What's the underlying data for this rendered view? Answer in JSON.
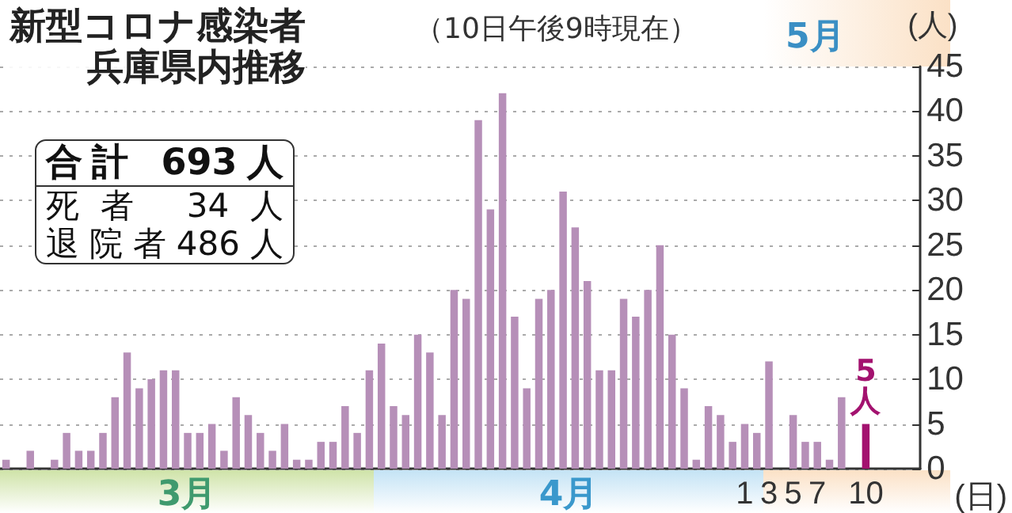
{
  "chart_data": {
    "type": "bar",
    "title": "新型コロナ感染者",
    "subtitle": "兵庫県内推移",
    "ylabel": "(人)",
    "xlabel": "(日)",
    "annotations": [
      "（10日午後9時現在）",
      "合計 693人",
      "死者 34人",
      "退院者486人",
      "3月",
      "4月",
      "5月"
    ],
    "categories": [
      null,
      null,
      null,
      null,
      null,
      null,
      null,
      null,
      null,
      null,
      null,
      null,
      null,
      null,
      null,
      null,
      null,
      null,
      null,
      null,
      null,
      null,
      null,
      null,
      null,
      null,
      null,
      null,
      null,
      null,
      null,
      null,
      null,
      null,
      null,
      null,
      null,
      null,
      null,
      null,
      null,
      null,
      null,
      null,
      null,
      null,
      null,
      null,
      null,
      null,
      null,
      null,
      null,
      null,
      null,
      null,
      null,
      null,
      null,
      null,
      null,
      "1",
      null,
      "3",
      null,
      "5",
      null,
      "7",
      null,
      null,
      null,
      "10"
    ],
    "values": [
      1,
      0,
      2,
      0,
      1,
      4,
      2,
      2,
      4,
      8,
      13,
      9,
      10,
      11,
      11,
      4,
      4,
      5,
      2,
      8,
      6,
      4,
      2,
      5,
      1,
      1,
      3,
      3,
      7,
      4,
      11,
      14,
      7,
      6,
      15,
      13,
      6,
      20,
      19,
      39,
      29,
      42,
      17,
      9,
      19,
      20,
      31,
      27,
      21,
      11,
      11,
      19,
      17,
      20,
      25,
      15,
      9,
      1,
      7,
      6,
      3,
      5,
      4,
      12,
      0,
      6,
      3,
      3,
      1,
      8,
      0,
      5
    ],
    "colors": [
      "#b68fb8",
      "#b68fb8",
      "#b68fb8",
      "#b68fb8",
      "#b68fb8",
      "#b68fb8",
      "#b68fb8",
      "#b68fb8",
      "#b68fb8",
      "#b68fb8",
      "#b68fb8",
      "#b68fb8",
      "#b68fb8",
      "#b68fb8",
      "#b68fb8",
      "#b68fb8",
      "#b68fb8",
      "#b68fb8",
      "#b68fb8",
      "#b68fb8",
      "#b68fb8",
      "#b68fb8",
      "#b68fb8",
      "#b68fb8",
      "#b68fb8",
      "#b68fb8",
      "#b68fb8",
      "#b68fb8",
      "#b68fb8",
      "#b68fb8",
      "#b68fb8",
      "#b68fb8",
      "#b68fb8",
      "#b68fb8",
      "#b68fb8",
      "#b68fb8",
      "#b68fb8",
      "#b68fb8",
      "#b68fb8",
      "#b68fb8",
      "#b68fb8",
      "#b68fb8",
      "#b68fb8",
      "#b68fb8",
      "#b68fb8",
      "#b68fb8",
      "#b68fb8",
      "#b68fb8",
      "#b68fb8",
      "#b68fb8",
      "#b68fb8",
      "#b68fb8",
      "#b68fb8",
      "#b68fb8",
      "#b68fb8",
      "#b68fb8",
      "#b68fb8",
      "#b68fb8",
      "#b68fb8",
      "#b68fb8",
      "#b68fb8",
      "#b68fb8",
      "#b68fb8",
      "#b68fb8",
      "#b68fb8",
      "#b68fb8",
      "#b68fb8",
      "#b68fb8",
      "#b68fb8",
      "#b68fb8",
      "#b68fb8",
      "#a3126f"
    ],
    "value_labels": [
      null,
      null,
      null,
      null,
      null,
      null,
      null,
      null,
      null,
      null,
      null,
      null,
      null,
      null,
      null,
      null,
      null,
      null,
      null,
      null,
      null,
      null,
      null,
      null,
      null,
      null,
      null,
      null,
      null,
      null,
      null,
      null,
      null,
      null,
      null,
      null,
      null,
      null,
      null,
      null,
      null,
      null,
      null,
      null,
      null,
      null,
      null,
      null,
      null,
      null,
      null,
      null,
      null,
      null,
      null,
      null,
      null,
      null,
      null,
      null,
      null,
      null,
      null,
      null,
      null,
      null,
      null,
      null,
      null,
      null,
      null,
      "5人"
    ],
    "ylim": [
      0,
      45
    ],
    "yticks": [
      0,
      5,
      10,
      15,
      20,
      25,
      30,
      35,
      40,
      45
    ],
    "grid": "y"
  }
}
